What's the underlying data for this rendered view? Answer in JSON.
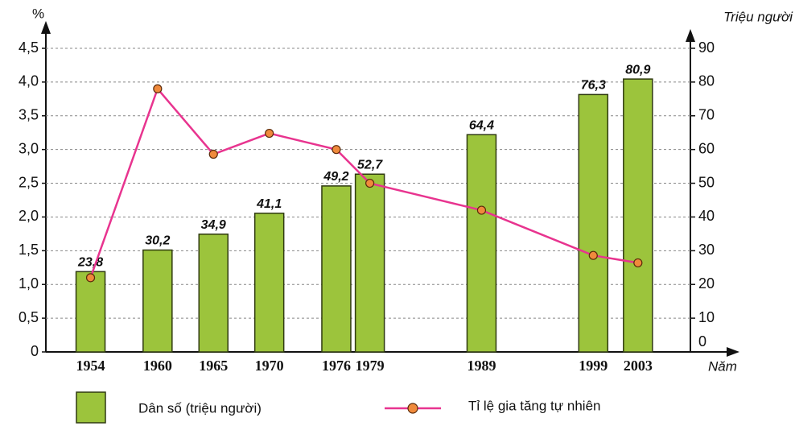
{
  "chart_data": {
    "type": "bar+line",
    "y_label": "%",
    "y2_label": "Triệu người",
    "x_label": "Năm",
    "x": [
      1954,
      1960,
      1965,
      1970,
      1976,
      1979,
      1989,
      1999,
      2003
    ],
    "xlim": [
      1950,
      2010
    ],
    "ylim": [
      0,
      4.5
    ],
    "yticks": [
      0,
      {
        "value": 0.5,
        "label": "0,5"
      },
      {
        "value": 1.0,
        "label": "1,0"
      },
      {
        "value": 1.5,
        "label": "1,5"
      },
      {
        "value": 2.0,
        "label": "2,0"
      },
      {
        "value": 2.5,
        "label": "2,5"
      },
      {
        "value": 3.0,
        "label": "3,0"
      },
      {
        "value": 3.5,
        "label": "3,5"
      },
      {
        "value": 4.0,
        "label": "4,0"
      },
      {
        "value": 4.5,
        "label": "4,5"
      }
    ],
    "y2lim": [
      0,
      90
    ],
    "y2ticks": [
      0,
      10,
      20,
      30,
      40,
      50,
      60,
      70,
      80,
      90
    ],
    "grid": true,
    "series": [
      {
        "name": "Dân số (triệu người)",
        "type": "bar",
        "axis": "y2",
        "color": "#9cc43c",
        "values": [
          23.8,
          30.2,
          34.9,
          41.1,
          49.2,
          52.7,
          64.4,
          76.3,
          80.9
        ],
        "value_labels": [
          "23,8",
          "30,2",
          "34,9",
          "41,1",
          "49,2",
          "52,7",
          "64,4",
          "76,3",
          "80,9"
        ]
      },
      {
        "name": "Tỉ lệ gia tăng tự nhiên",
        "type": "line",
        "axis": "y",
        "color": "#e8348f",
        "marker_color": "#f08a3c",
        "values": [
          1.1,
          3.9,
          2.93,
          3.24,
          3.0,
          2.5,
          2.1,
          1.43,
          1.32
        ]
      }
    ]
  }
}
